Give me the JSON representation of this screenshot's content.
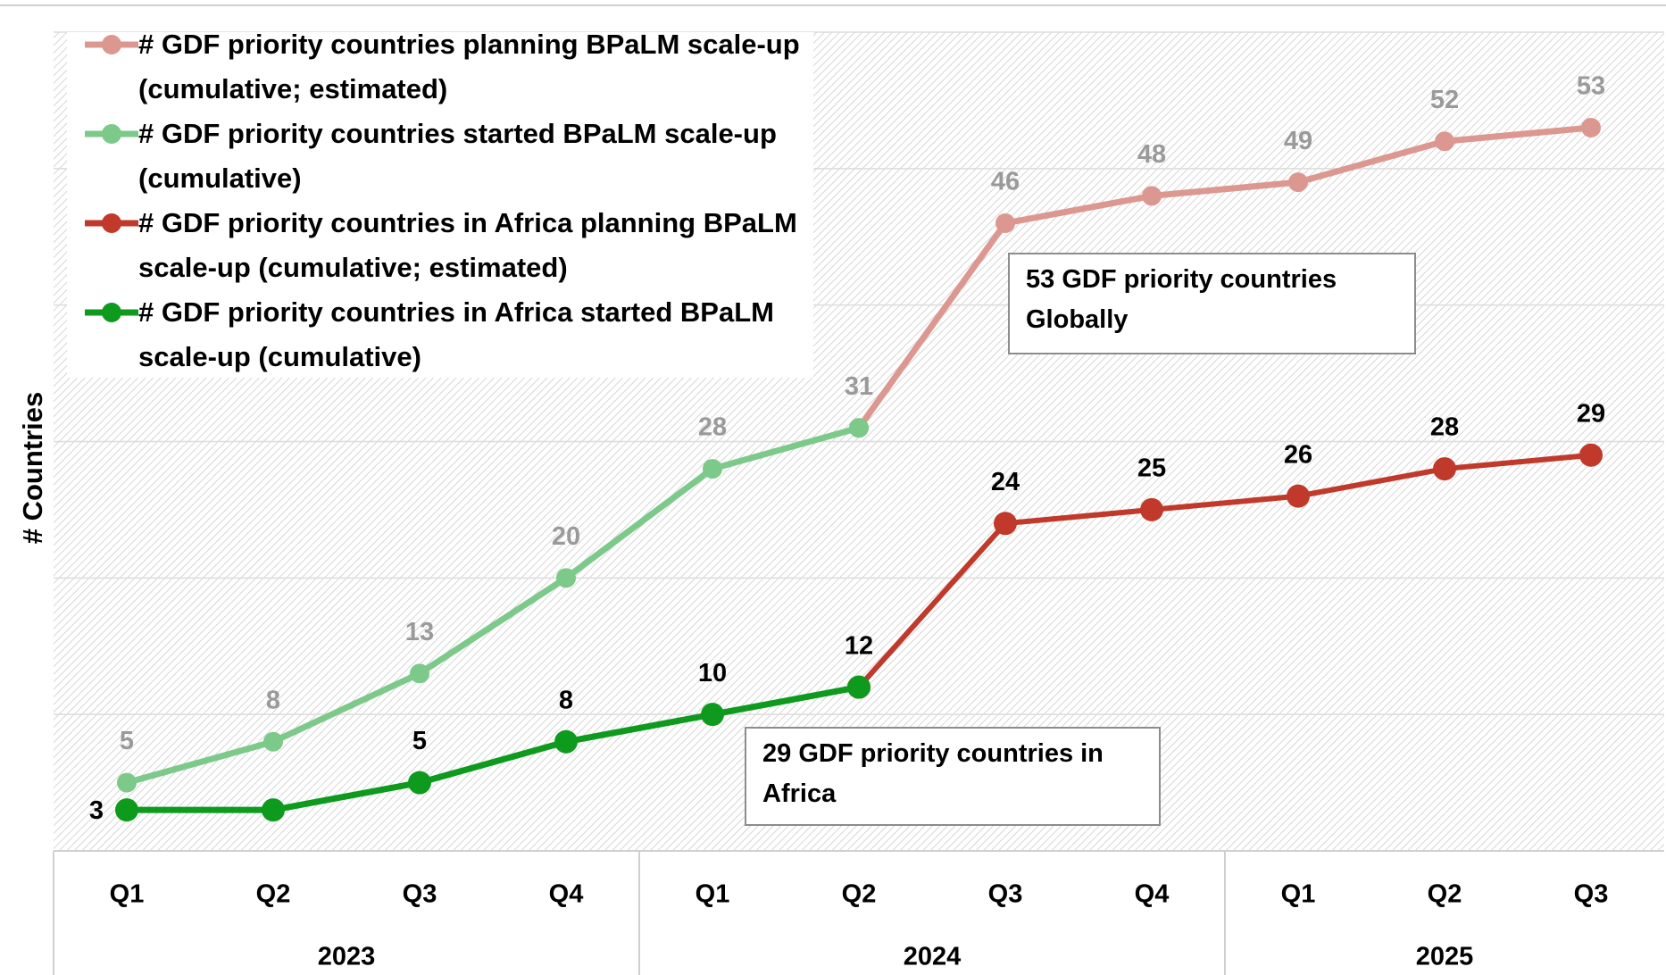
{
  "chart_data": {
    "type": "line",
    "y_label": "# Countries",
    "categories": [
      "Q1",
      "Q2",
      "Q3",
      "Q4",
      "Q1",
      "Q2",
      "Q3",
      "Q4",
      "Q1",
      "Q2",
      "Q3"
    ],
    "groups": [
      {
        "label": "2023",
        "span": 4
      },
      {
        "label": "2024",
        "span": 4
      },
      {
        "label": "2025",
        "span": 3
      }
    ],
    "ylim": [
      0,
      60
    ],
    "yticks": [
      0,
      10,
      20,
      30,
      40,
      50,
      60
    ],
    "ytick_labels": false,
    "grid": true,
    "series": [
      {
        "name": "# GDF priority countries planning BPaLM scale-up (cumulative; estimated)",
        "color": "#dc9890",
        "label_color": "#9a9a9a",
        "values": [
          null,
          null,
          null,
          null,
          null,
          31,
          46,
          48,
          49,
          52,
          53
        ],
        "value_labels": [
          null,
          null,
          null,
          null,
          null,
          null,
          46,
          48,
          49,
          52,
          53
        ]
      },
      {
        "name": "# GDF priority countries started BPaLM scale-up (cumulative)",
        "color": "#7cc98a",
        "label_color": "#9a9a9a",
        "values": [
          5,
          8,
          13,
          20,
          28,
          31,
          null,
          null,
          null,
          null,
          null
        ],
        "value_labels": [
          5,
          8,
          13,
          20,
          28,
          31,
          null,
          null,
          null,
          null,
          null
        ]
      },
      {
        "name": "# GDF priority countries in Africa planning BPaLM scale-up (cumulative; estimated)",
        "color": "#c0392b",
        "label_color": "#000000",
        "values": [
          null,
          null,
          null,
          null,
          null,
          12,
          24,
          25,
          26,
          28,
          29
        ],
        "value_labels": [
          null,
          null,
          null,
          null,
          null,
          null,
          24,
          25,
          26,
          28,
          29
        ]
      },
      {
        "name": "# GDF priority countries in Africa started BPaLM scale-up (cumulative)",
        "color": "#0e9a1c",
        "label_color": "#000000",
        "values": [
          3,
          3,
          5,
          8,
          10,
          12,
          null,
          null,
          null,
          null,
          null
        ],
        "value_labels": [
          3,
          null,
          5,
          8,
          10,
          12,
          null,
          null,
          null,
          null,
          null
        ]
      }
    ],
    "annotations": [
      {
        "lines": [
          "53 GDF priority countries",
          "Globally"
        ]
      },
      {
        "lines": [
          "29 GDF priority countries in",
          "Africa"
        ]
      }
    ]
  }
}
